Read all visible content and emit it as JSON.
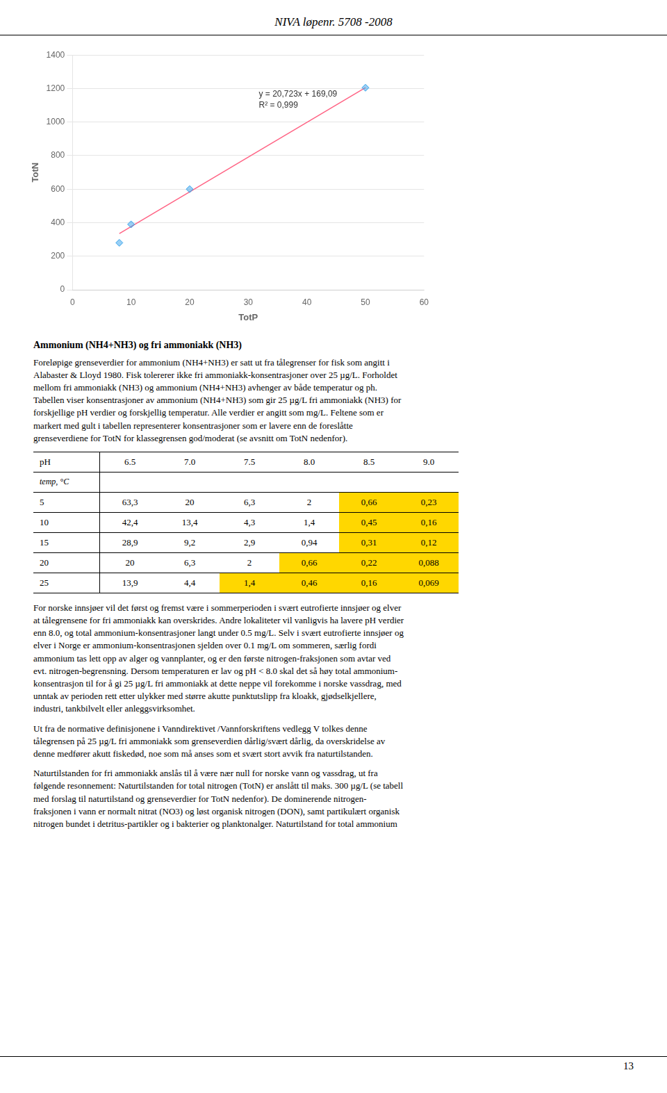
{
  "header": "NIVA løpenr. 5708 -2008",
  "chart_data": {
    "type": "scatter",
    "xlabel": "TotP",
    "ylabel": "TotN",
    "xlim": [
      0,
      60
    ],
    "ylim": [
      0,
      1400
    ],
    "xticks": [
      0,
      10,
      20,
      30,
      40,
      50,
      60
    ],
    "yticks": [
      0,
      200,
      400,
      600,
      800,
      1000,
      1200,
      1400
    ],
    "grid": "y",
    "annotations": [
      "y = 20,723x + 169,09",
      "R² = 0,999"
    ],
    "series": [
      {
        "type": "scatter",
        "marker": "diamond",
        "x": [
          8,
          10,
          20,
          50
        ],
        "values": [
          280,
          390,
          600,
          1205
        ]
      },
      {
        "type": "line",
        "line_style": "solid",
        "x": [
          8,
          50
        ],
        "values": [
          334.874,
          1205.24
        ]
      }
    ]
  },
  "para1_title": "Ammonium (NH4+NH3) og fri ammoniakk (NH3)",
  "para1": "Foreløpige grenseverdier for ammonium (NH4+NH3) er satt ut fra tålegrenser for fisk som angitt i\nAlabaster & Lloyd 1980. Fisk tolererer ikke fri ammoniakk-konsentrasjoner over 25 µg/L. Forholdet\nmellom fri ammoniakk (NH3) og ammonium (NH4+NH3) avhenger av både temperatur og ph.\nTabellen viser konsentrasjoner av ammonium (NH4+NH3) som gir 25 µg/L fri ammoniakk (NH3) for\nforskjellige pH verdier og forskjellig temperatur. Alle verdier er angitt som mg/L. Feltene som er\nmarkert med gult i tabellen representerer konsentrasjoner som er lavere enn de foreslåtte\ngrenseverdiene for TotN for klassegrensen god/moderat (se avsnitt om TotN nedenfor).",
  "table": {
    "headers": [
      "pH",
      "6.5",
      "7.0",
      "7.5",
      "8.0",
      "8.5",
      "9.0"
    ],
    "subheader": "temp, °C",
    "rows": [
      [
        "5",
        "63,3",
        "20",
        "6,3",
        "2",
        "0,66",
        "0,23"
      ],
      [
        "10",
        "42,4",
        "13,4",
        "4,3",
        "1,4",
        "0,45",
        "0,16"
      ],
      [
        "15",
        "28,9",
        "9,2",
        "2,9",
        "0,94",
        "0,31",
        "0,12"
      ],
      [
        "20",
        "20",
        "6,3",
        "2",
        "0,66",
        "0,22",
        "0,088"
      ],
      [
        "25",
        "13,9",
        "4,4",
        "1,4",
        "0,46",
        "0,16",
        "0,069"
      ]
    ],
    "highlight_color": "#FFD700",
    "highlighted": [
      [
        0,
        5
      ],
      [
        0,
        6
      ],
      [
        1,
        5
      ],
      [
        1,
        6
      ],
      [
        2,
        5
      ],
      [
        2,
        6
      ],
      [
        3,
        4
      ],
      [
        3,
        5
      ],
      [
        3,
        6
      ],
      [
        4,
        3
      ],
      [
        4,
        4
      ],
      [
        4,
        5
      ],
      [
        4,
        6
      ]
    ]
  },
  "para2": "For norske innsjøer vil det først og fremst være i sommerperioden i svært eutrofierte innsjøer og elver\nat tålegrensene for fri ammoniakk kan overskrides. Andre lokaliteter vil vanligvis ha lavere pH verdier\nenn 8.0, og total ammonium-konsentrasjoner langt under 0.5 mg/L. Selv i svært eutrofierte innsjøer og\nelver i Norge er ammonium-konsentrasjonen sjelden over 0.1 mg/L om sommeren, særlig fordi\nammonium tas lett opp av alger og vannplanter, og er den første nitrogen-fraksjonen som avtar ved\nevt. nitrogen-begrensning. Dersom temperaturen er lav og pH < 8.0 skal det så høy total ammonium-\nkonsentrasjon til for å gi 25 µg/L fri ammoniakk at dette neppe vil forekomme i norske vassdrag, med\nunntak av perioden rett etter ulykker med større akutte punktutslipp fra kloakk, gjødselkjellere,\nindustri, tankbilvelt eller anleggsvirksomhet.",
  "para3": "Ut fra de normative definisjonene i Vanndirektivet /Vannforskriftens vedlegg V tolkes denne\ntålegrensen på 25 µg/L fri ammoniakk som grenseverdien dårlig/svært dårlig, da overskridelse av\ndenne medfører akutt fiskedød, noe som må anses som et svært stort avvik fra naturtilstanden.",
  "para4": "Naturtilstanden for fri ammoniakk anslås til å være nær null for norske vann og vassdrag, ut fra\nfølgende resonnement: Naturtilstanden for total nitrogen (TotN) er anslått til maks. 300 µg/L (se tabell\nmed forslag til naturtilstand og grenseverdier for TotN nedenfor). De dominerende nitrogen-\nfraksjonen i vann er normalt nitrat (NO3) og løst organisk nitrogen (DON), samt partikulært organisk\nnitrogen bundet i detritus-partikler og i bakterier og planktonalger. Naturtilstand for total ammonium",
  "page_number": "13"
}
